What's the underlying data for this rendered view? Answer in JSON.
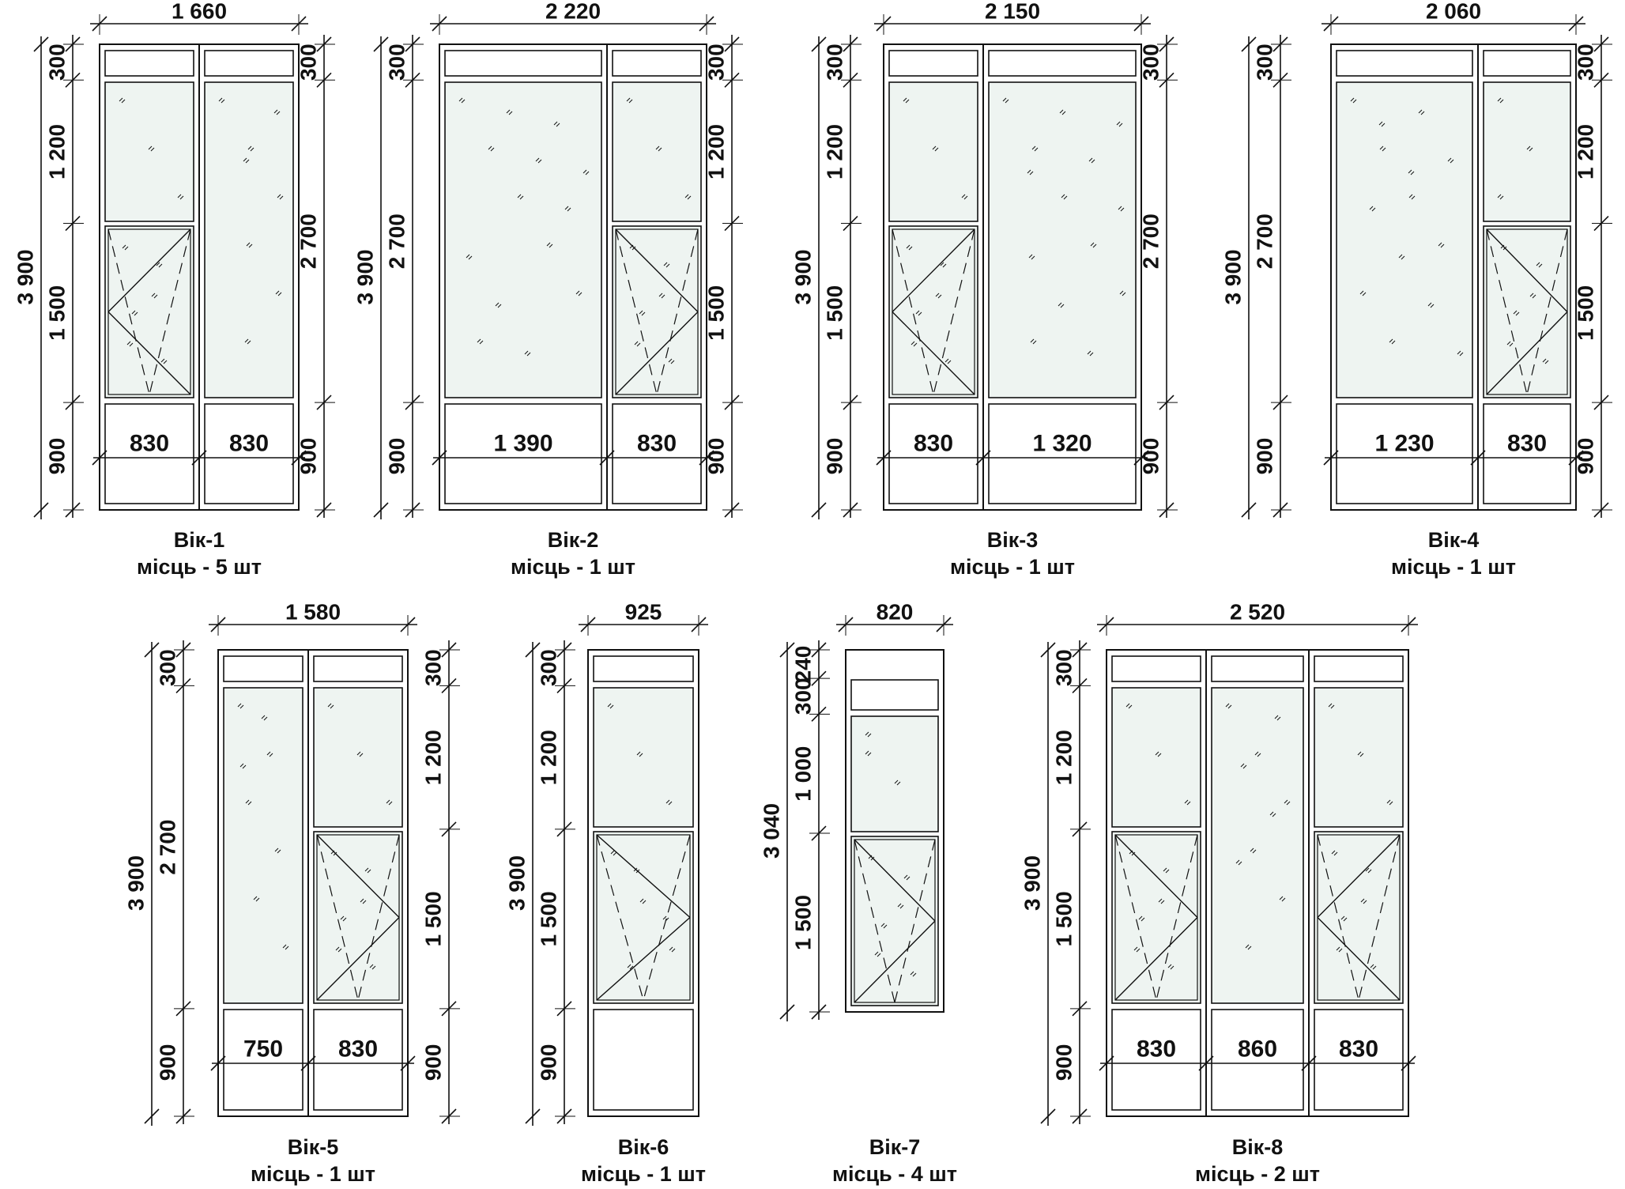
{
  "windows": [
    {
      "id": "w1",
      "width_label": "1 660",
      "total_height": "3 900",
      "left_dims": [
        "300",
        "1 200",
        "1 500",
        "900"
      ],
      "right_dims": [
        "300",
        "2 700",
        "900"
      ],
      "pane_widths": [
        "830",
        "830"
      ],
      "code": "Вік-1",
      "qty": "місць - 5 шт",
      "icon": "window-elevation-icon"
    },
    {
      "id": "w2",
      "width_label": "2 220",
      "total_height": "3 900",
      "left_dims": [
        "300",
        "2 700",
        "900"
      ],
      "right_dims": [
        "300",
        "1 200",
        "1 500",
        "900"
      ],
      "pane_widths": [
        "1 390",
        "830"
      ],
      "code": "Вік-2",
      "qty": "місць - 1 шт",
      "icon": "window-elevation-icon"
    },
    {
      "id": "w3",
      "width_label": "2 150",
      "total_height": "3 900",
      "left_dims": [
        "300",
        "1 200",
        "1 500",
        "900"
      ],
      "right_dims": [
        "300",
        "2 700",
        "900"
      ],
      "pane_widths": [
        "830",
        "1 320"
      ],
      "code": "Вік-3",
      "qty": "місць - 1 шт",
      "icon": "window-elevation-icon"
    },
    {
      "id": "w4",
      "width_label": "2 060",
      "total_height": "3 900",
      "left_dims": [
        "300",
        "2 700",
        "900"
      ],
      "right_dims": [
        "300",
        "1 200",
        "1 500",
        "900"
      ],
      "pane_widths": [
        "1 230",
        "830"
      ],
      "code": "Вік-4",
      "qty": "місць - 1 шт",
      "icon": "window-elevation-icon"
    },
    {
      "id": "w5",
      "width_label": "1 580",
      "total_height": "3 900",
      "left_dims": [
        "300",
        "2 700",
        "900"
      ],
      "right_dims": [
        "300",
        "1 200",
        "1 500",
        "900"
      ],
      "pane_widths": [
        "750",
        "830"
      ],
      "code": "Вік-5",
      "qty": "місць - 1 шт",
      "icon": "window-elevation-icon"
    },
    {
      "id": "w6",
      "width_label": "925",
      "total_height": "3 900",
      "left_dims": [
        "300",
        "1 200",
        "1 500",
        "900"
      ],
      "right_dims": [],
      "pane_widths": [],
      "code": "Вік-6",
      "qty": "місць - 1 шт",
      "icon": "window-elevation-icon"
    },
    {
      "id": "w7",
      "width_label": "820",
      "total_height": "3 040",
      "left_dims": [
        "240",
        "300",
        "1 000",
        "1 500"
      ],
      "right_dims": [],
      "pane_widths": [],
      "code": "Вік-7",
      "qty": "місць - 4 шт",
      "icon": "window-elevation-icon"
    },
    {
      "id": "w8",
      "width_label": "2 520",
      "total_height": "3 900",
      "left_dims": [
        "300",
        "1 200",
        "1 500",
        "900"
      ],
      "right_dims": [],
      "pane_widths": [
        "830",
        "860",
        "830"
      ],
      "code": "Вік-8",
      "qty": "місць - 2 шт",
      "icon": "window-elevation-icon"
    }
  ],
  "colors": {
    "line": "#111111",
    "glass": "#eef4f1"
  }
}
